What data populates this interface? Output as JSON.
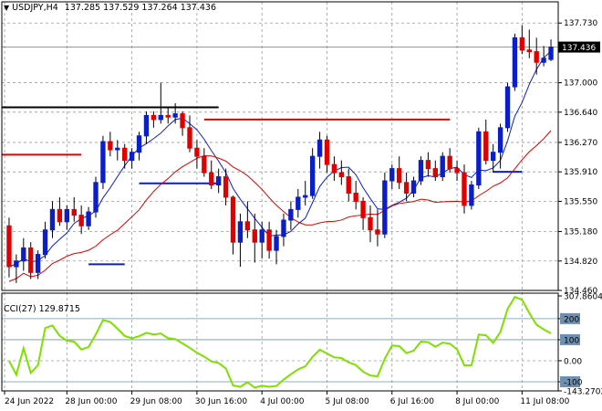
{
  "header": {
    "symbol": "USDJPY,H4",
    "ohlc": "137.285 137.529 137.264 137.436"
  },
  "price_axis": {
    "ticks": [
      "137.730",
      "137.000",
      "136.640",
      "136.270",
      "135.910",
      "135.550",
      "135.180",
      "134.820",
      "134.460"
    ],
    "current_price": "137.436"
  },
  "indicator": {
    "label": "CCI(27) 129.8715",
    "ticks": [
      "307.8604",
      "200",
      "100",
      "0.00",
      "-100",
      "-143.2702"
    ]
  },
  "time_axis": {
    "labels": [
      "24 Jun 2022",
      "28 Jun 00:00",
      "29 Jun 08:00",
      "30 Jun 16:00",
      "4 Jul 00:00",
      "5 Jul 08:00",
      "6 Jul 16:00",
      "8 Jul 00:00",
      "11 Jul 08:00"
    ]
  },
  "colors": {
    "bull": "#0b1ec8",
    "bear": "#e00000",
    "ma_fast": "#0b1ec8",
    "ma_slow": "#e00000",
    "cci": "#7ee000",
    "level_black": "#000000",
    "level_red": "#e00000",
    "level_blue": "#0b1ec8"
  },
  "chart_data": {
    "type": "candlestick",
    "instrument": "USDJPY",
    "timeframe": "H4",
    "ylim": [
      134.46,
      137.9
    ],
    "candles": [
      [
        135.25,
        135.35,
        134.62,
        134.75
      ],
      [
        134.75,
        134.9,
        134.55,
        134.82
      ],
      [
        134.82,
        135.1,
        134.7,
        134.98
      ],
      [
        134.98,
        135.05,
        134.6,
        134.68
      ],
      [
        134.68,
        134.95,
        134.6,
        134.9
      ],
      [
        134.9,
        135.3,
        134.85,
        135.2
      ],
      [
        135.2,
        135.55,
        135.1,
        135.45
      ],
      [
        135.45,
        135.6,
        135.25,
        135.3
      ],
      [
        135.3,
        135.5,
        135.2,
        135.45
      ],
      [
        135.45,
        135.6,
        135.3,
        135.38
      ],
      [
        135.38,
        135.5,
        135.15,
        135.25
      ],
      [
        135.25,
        135.48,
        135.2,
        135.42
      ],
      [
        135.42,
        135.85,
        135.35,
        135.78
      ],
      [
        135.78,
        136.35,
        135.7,
        136.28
      ],
      [
        136.28,
        136.4,
        136.1,
        136.18
      ],
      [
        136.18,
        136.3,
        136.05,
        136.2
      ],
      [
        136.2,
        136.25,
        135.95,
        136.05
      ],
      [
        136.05,
        136.2,
        135.95,
        136.15
      ],
      [
        136.15,
        136.4,
        136.05,
        136.35
      ],
      [
        136.35,
        136.65,
        136.25,
        136.6
      ],
      [
        136.6,
        136.65,
        136.45,
        136.55
      ],
      [
        136.55,
        137.0,
        136.5,
        136.6
      ],
      [
        136.6,
        136.7,
        136.5,
        136.58
      ],
      [
        136.58,
        136.75,
        136.5,
        136.62
      ],
      [
        136.62,
        136.65,
        136.35,
        136.45
      ],
      [
        136.45,
        136.6,
        136.15,
        136.2
      ],
      [
        136.2,
        136.3,
        135.95,
        136.1
      ],
      [
        136.1,
        136.2,
        135.85,
        135.9
      ],
      [
        135.9,
        136.05,
        135.7,
        135.75
      ],
      [
        135.75,
        135.95,
        135.65,
        135.85
      ],
      [
        135.85,
        135.95,
        135.5,
        135.6
      ],
      [
        135.6,
        135.62,
        134.9,
        135.05
      ],
      [
        135.05,
        135.4,
        134.75,
        135.3
      ],
      [
        135.3,
        135.55,
        135.1,
        135.2
      ],
      [
        135.2,
        135.4,
        134.8,
        135.05
      ],
      [
        135.05,
        135.3,
        134.85,
        135.2
      ],
      [
        135.2,
        135.3,
        134.85,
        134.95
      ],
      [
        134.95,
        135.2,
        134.78,
        135.12
      ],
      [
        135.12,
        135.4,
        135.0,
        135.32
      ],
      [
        135.32,
        135.55,
        135.2,
        135.45
      ],
      [
        135.45,
        135.7,
        135.35,
        135.6
      ],
      [
        135.6,
        135.8,
        135.5,
        135.62
      ],
      [
        135.62,
        136.2,
        135.58,
        136.1
      ],
      [
        136.1,
        136.4,
        135.95,
        136.3
      ],
      [
        136.3,
        136.35,
        135.9,
        136.0
      ],
      [
        136.0,
        136.1,
        135.8,
        135.9
      ],
      [
        135.9,
        136.05,
        135.75,
        135.85
      ],
      [
        135.85,
        135.95,
        135.55,
        135.65
      ],
      [
        135.65,
        135.8,
        135.45,
        135.55
      ],
      [
        135.55,
        135.6,
        135.2,
        135.35
      ],
      [
        135.35,
        135.5,
        135.05,
        135.2
      ],
      [
        135.2,
        135.45,
        135.0,
        135.15
      ],
      [
        135.15,
        135.9,
        135.1,
        135.8
      ],
      [
        135.8,
        136.0,
        135.7,
        135.95
      ],
      [
        135.95,
        136.1,
        135.7,
        135.78
      ],
      [
        135.78,
        135.9,
        135.55,
        135.65
      ],
      [
        135.65,
        135.85,
        135.6,
        135.8
      ],
      [
        135.8,
        136.1,
        135.75,
        136.05
      ],
      [
        136.05,
        136.15,
        135.85,
        135.95
      ],
      [
        135.95,
        136.05,
        135.8,
        135.85
      ],
      [
        135.85,
        136.15,
        135.8,
        136.1
      ],
      [
        136.1,
        136.2,
        135.9,
        135.95
      ],
      [
        135.95,
        136.05,
        135.8,
        135.9
      ],
      [
        135.9,
        136.0,
        135.4,
        135.5
      ],
      [
        135.5,
        135.8,
        135.45,
        135.75
      ],
      [
        135.75,
        136.45,
        135.7,
        136.4
      ],
      [
        136.4,
        136.55,
        136.0,
        136.05
      ],
      [
        136.05,
        136.25,
        135.9,
        136.15
      ],
      [
        136.15,
        136.5,
        135.95,
        136.45
      ],
      [
        136.45,
        137.0,
        136.4,
        136.95
      ],
      [
        136.95,
        137.6,
        136.9,
        137.55
      ],
      [
        137.55,
        137.7,
        137.35,
        137.4
      ],
      [
        137.4,
        137.65,
        137.3,
        137.38
      ],
      [
        137.38,
        137.55,
        137.1,
        137.25
      ],
      [
        137.25,
        137.45,
        137.2,
        137.3
      ],
      [
        137.285,
        137.529,
        137.264,
        137.436
      ]
    ],
    "horizontal_levels": [
      {
        "color": "black",
        "value": 136.7,
        "from_candle": 0,
        "to_candle": 29
      },
      {
        "color": "red",
        "value": 136.12,
        "from_candle": 0,
        "to_candle": 10
      },
      {
        "color": "red",
        "value": 136.55,
        "from_candle": 27,
        "to_candle": 61
      },
      {
        "color": "blue",
        "value": 134.78,
        "from_candle": 11,
        "to_candle": 16
      },
      {
        "color": "blue",
        "value": 135.77,
        "from_candle": 18,
        "to_candle": 29
      },
      {
        "color": "blue",
        "value": 135.91,
        "from_candle": 67,
        "to_candle": 71
      }
    ],
    "cci": {
      "name": "CCI(27)",
      "current": 129.8715,
      "ylim": [
        -143.2702,
        307.8604
      ],
      "levels": [
        200,
        100,
        0,
        -100
      ]
    }
  }
}
